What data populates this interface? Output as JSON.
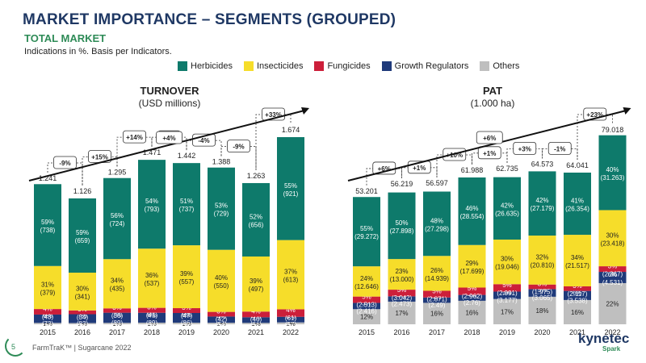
{
  "header": {
    "title": "MARKET IMPORTANCE   – SEGMENTS (GROUPED)",
    "subtitle": "TOTAL MARKET",
    "note": "Indications in %. Basis per Indicators."
  },
  "legend": [
    {
      "label": "Herbicides",
      "color": "#0e7a6b"
    },
    {
      "label": "Insecticides",
      "color": "#f6dd2a"
    },
    {
      "label": "Fungicides",
      "color": "#cc1f3a"
    },
    {
      "label": "Growth Regulators",
      "color": "#1f3a7a"
    },
    {
      "label": "Others",
      "color": "#bfbfbf"
    }
  ],
  "footer": {
    "page": "5",
    "source": "FarmTraK™ | Sugarcane 2022",
    "logo": "kynetec",
    "logo_sub": "Spark"
  },
  "chart_data": [
    {
      "type": "bar",
      "title": "TURNOVER",
      "unit": "(USD millions)",
      "categories": [
        "2015",
        "2016",
        "2017",
        "2018",
        "2019",
        "2020",
        "2021",
        "2022"
      ],
      "totals": [
        "1.241",
        "1.126",
        "1.295",
        "1.471",
        "1.442",
        "1.388",
        "1.263",
        "1.674"
      ],
      "total_values": [
        1241,
        1126,
        1295,
        1471,
        1442,
        1388,
        1263,
        1674
      ],
      "changes": [
        "-9%",
        "+15%",
        "+14%",
        "-2%",
        "-4%",
        "-9%",
        "+33%"
      ],
      "overall_change": "+4%",
      "series": [
        {
          "name": "Others",
          "pct": [
            1,
            1,
            1,
            1,
            1,
            1,
            1,
            1
          ],
          "labels": [
            "1%",
            "1%",
            "1%",
            "1%",
            "1%",
            "1%",
            "1%",
            "1%"
          ]
        },
        {
          "name": "Growth Regulators",
          "pct": [
            6,
            7,
            7,
            6,
            6,
            4,
            4,
            3
          ],
          "labels": [
            "6%|(73)",
            "7%|(83)",
            "7%|(89)",
            "6%|(89)",
            "6%|(86)",
            "4%|(54)",
            "4%|(51)",
            "3%|(57)"
          ]
        },
        {
          "name": "Fungicides",
          "pct": [
            4,
            3,
            3,
            3,
            3,
            3,
            4,
            4
          ],
          "labels": [
            "4%|(43)",
            "3%|(34)",
            "3%|(36)",
            "3%|(41)",
            "3%|(47)",
            "3%|(42)",
            "4%|(46)",
            "4%|(61)"
          ]
        },
        {
          "name": "Insecticides",
          "pct": [
            31,
            30,
            34,
            36,
            39,
            40,
            39,
            37
          ],
          "labels": [
            "31%|(379)",
            "30%|(341)",
            "34%|(435)",
            "36%|(537)",
            "39%|(557)",
            "40%|(550)",
            "39%|(497)",
            "37%|(613)"
          ]
        },
        {
          "name": "Herbicides",
          "pct": [
            59,
            59,
            56,
            54,
            51,
            53,
            52,
            55
          ],
          "labels": [
            "59%|(738)",
            "59%|(659)",
            "56%|(724)",
            "54%|(793)",
            "51%|(737)",
            "53%|(729)",
            "52%|(656)",
            "55%|(921)"
          ]
        }
      ]
    },
    {
      "type": "bar",
      "title": "PAT",
      "unit": "(1.000 ha)",
      "categories": [
        "2015",
        "2016",
        "2017",
        "2018",
        "2019",
        "2020",
        "2021",
        "2022"
      ],
      "totals": [
        "53.201",
        "56.219",
        "56.597",
        "61.988",
        "62.735",
        "64.573",
        "64.041",
        "79.018"
      ],
      "total_values": [
        53201,
        56219,
        56597,
        61988,
        62735,
        64573,
        64041,
        79018
      ],
      "changes": [
        "+6%",
        "+1%",
        "+10%",
        "+1%",
        "+3%",
        "-1%",
        "+23%"
      ],
      "overall_change": "+6%",
      "series": [
        {
          "name": "Others",
          "pct": [
            12,
            17,
            16,
            16,
            17,
            18,
            16,
            22
          ],
          "labels": [
            "12%",
            "17%",
            "16%",
            "16%",
            "17%",
            "18%",
            "16%",
            "22%"
          ]
        },
        {
          "name": "Growth Regulators",
          "pct": [
            5,
            4,
            4,
            4,
            5,
            5,
            6,
            6
          ],
          "labels": [
            "5%|(2.416)",
            "4%|(2.473)",
            "4%|(2.49)",
            "4%|(2.76)",
            "5%|(3.177)",
            "5%|(3.065)",
            "6%|(3.538)",
            "6%|(4.531)"
          ]
        },
        {
          "name": "Fungicides",
          "pct": [
            5,
            5,
            5,
            5,
            5,
            3,
            3,
            3
          ],
          "labels": [
            "5%|(2.513)",
            "5%|(3.042)",
            "5%|(2.871)",
            "5%|(2.962)",
            "5%|(2.991)",
            "3%|(1.975)",
            "3%|(2.117)",
            "3%|(2.367)"
          ]
        },
        {
          "name": "Insecticides",
          "pct": [
            24,
            23,
            26,
            29,
            30,
            32,
            34,
            30
          ],
          "labels": [
            "24%|(12.646)",
            "23%|(13.000)",
            "26%|(14.939)",
            "29%|(17.699)",
            "30%|(19.046)",
            "32%|(20.810)",
            "34%|(21.517)",
            "30%|(23.418)"
          ]
        },
        {
          "name": "Herbicides",
          "pct": [
            55,
            50,
            48,
            46,
            42,
            42,
            41,
            40
          ],
          "labels": [
            "55%|(29.272)",
            "50%|(27.898)",
            "48%|(27.298)",
            "46%|(28.554)",
            "42%|(26.635)",
            "42%|(27.179)",
            "41%|(26.354)",
            "40%|(31.263)"
          ]
        }
      ]
    }
  ]
}
